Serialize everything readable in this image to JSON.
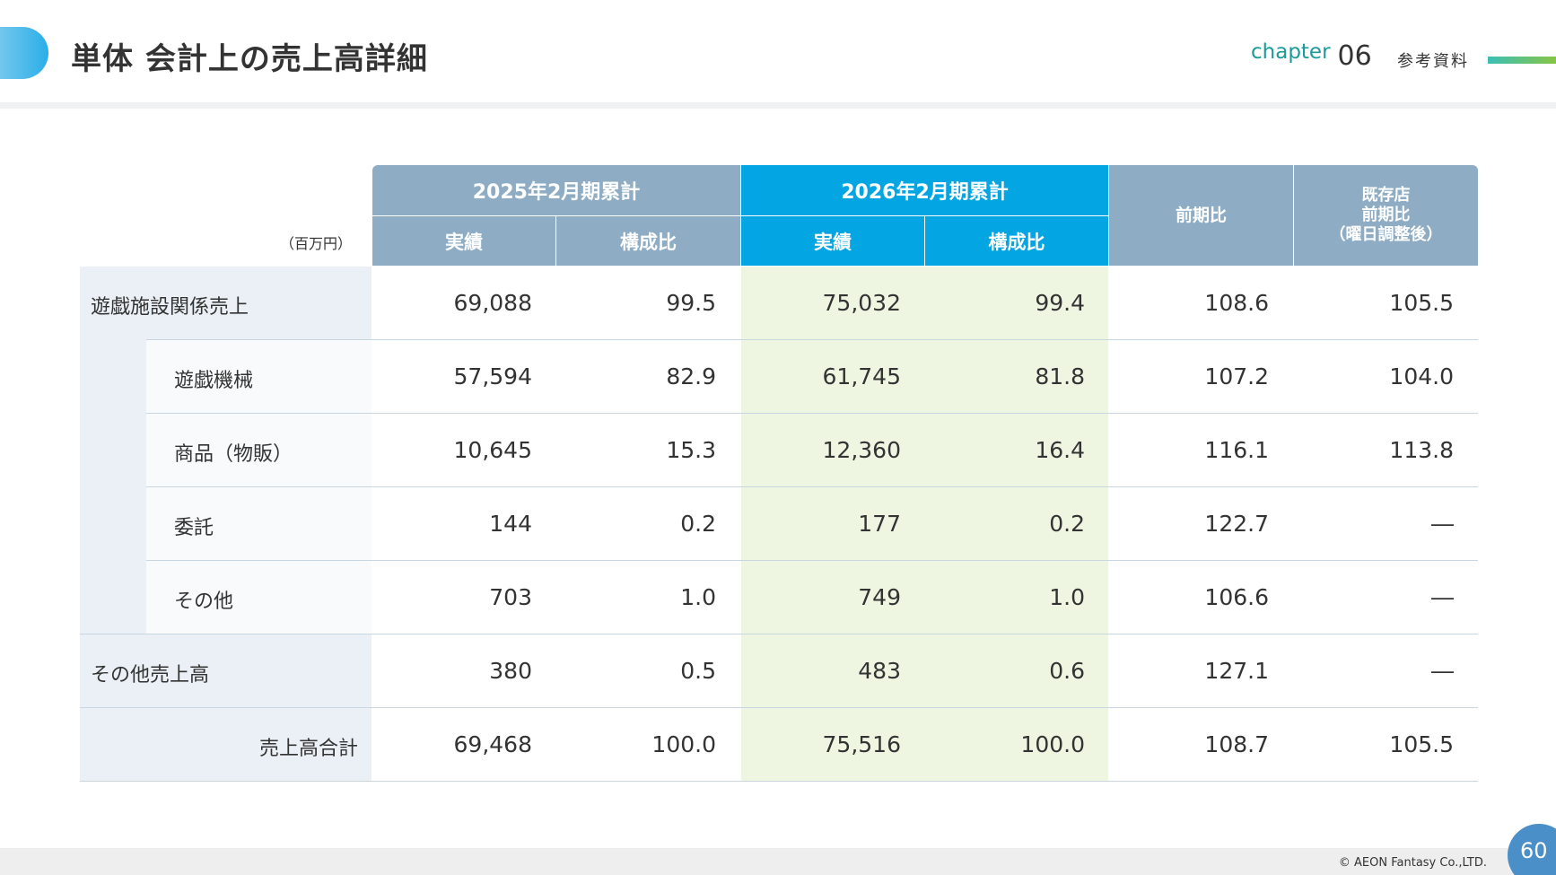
{
  "header": {
    "title": "単体 会計上の売上高詳細",
    "chapter_word": "chapter",
    "chapter_num": "06",
    "section": "参考資料"
  },
  "table": {
    "unit": "（百万円）",
    "groups": [
      {
        "label": "2025年2月期累計",
        "sub": [
          "実績",
          "構成比"
        ]
      },
      {
        "label": "2026年2月期累計",
        "sub": [
          "実績",
          "構成比"
        ]
      }
    ],
    "col_yoy": "前期比",
    "col_existing": [
      "既存店",
      "前期比",
      "（曜日調整後）"
    ],
    "rows": [
      {
        "label": "遊戯施設関係売上",
        "values": [
          "69,088",
          "99.5",
          "75,032",
          "99.4",
          "108.6",
          "105.5"
        ]
      },
      {
        "label": "遊戯機械",
        "values": [
          "57,594",
          "82.9",
          "61,745",
          "81.8",
          "107.2",
          "104.0"
        ]
      },
      {
        "label": "商品（物販）",
        "values": [
          "10,645",
          "15.3",
          "12,360",
          "16.4",
          "116.1",
          "113.8"
        ]
      },
      {
        "label": "委託",
        "values": [
          "144",
          "0.2",
          "177",
          "0.2",
          "122.7",
          "―"
        ]
      },
      {
        "label": "その他",
        "values": [
          "703",
          "1.0",
          "749",
          "1.0",
          "106.6",
          "―"
        ]
      },
      {
        "label": "その他売上高",
        "values": [
          "380",
          "0.5",
          "483",
          "0.6",
          "127.1",
          "―"
        ]
      },
      {
        "label": "売上高合計",
        "values": [
          "69,468",
          "100.0",
          "75,516",
          "100.0",
          "108.7",
          "105.5"
        ]
      }
    ]
  },
  "colors": {
    "header_gray": "#8eadc4",
    "header_blue": "#03a6e2",
    "highlight_green": "#eef6e2",
    "label_bg": "#eaf0f5"
  },
  "footer": {
    "copyright": "© AEON Fantasy Co.,LTD.",
    "page": "60"
  }
}
